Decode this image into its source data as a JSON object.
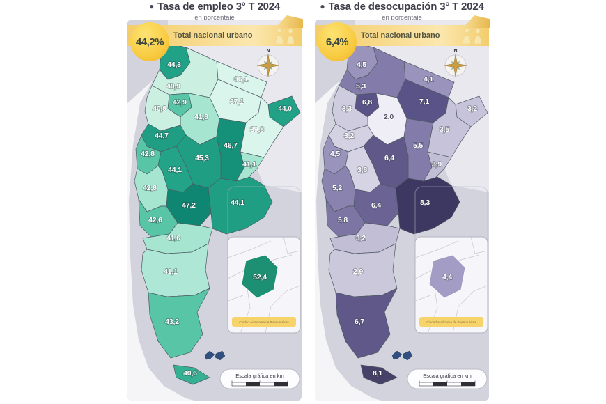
{
  "panels": [
    {
      "bullet": "●",
      "title": "Tasa de empleo 3° T 2024",
      "subtitle": "en porcentaje",
      "badge_value": "44,2%",
      "banner_label": "Total nacional urbano",
      "compass_label": "N",
      "inset_value": "52,4",
      "inset_fill": "#1d8f72",
      "inset_caption": "Ciudad Autónoma de Buenos Aires",
      "scale_label": "Escala gráfica en km",
      "provinces": [
        {
          "name": "Jujuy",
          "value": "44,3",
          "fill": "#21a186"
        },
        {
          "name": "Salta",
          "value": "40,9",
          "fill": "#cbf0e1"
        },
        {
          "name": "Formosa",
          "value": "36,1",
          "fill": "#daf5eb"
        },
        {
          "name": "Chaco",
          "value": "37,1",
          "fill": "#daf5eb"
        },
        {
          "name": "Misiones",
          "value": "44,0",
          "fill": "#21a186"
        },
        {
          "name": "Corrientes",
          "value": "39,8",
          "fill": "#daf5eb"
        },
        {
          "name": "Tucumán",
          "value": "42,9",
          "fill": "#58c5a6"
        },
        {
          "name": "Santiago del Estero",
          "value": "41,8",
          "fill": "#a6e5d0"
        },
        {
          "name": "Catamarca",
          "value": "40,8",
          "fill": "#cbf0e1"
        },
        {
          "name": "La Rioja",
          "value": "44,7",
          "fill": "#1f9e83"
        },
        {
          "name": "Santa Fe",
          "value": "46,7",
          "fill": "#15917a"
        },
        {
          "name": "San Juan",
          "value": "42,8",
          "fill": "#58c5a6"
        },
        {
          "name": "Córdoba",
          "value": "45,3",
          "fill": "#1f9e83"
        },
        {
          "name": "Entre Ríos",
          "value": "41,1",
          "fill": "#a6e5d0"
        },
        {
          "name": "San Luis",
          "value": "44,1",
          "fill": "#23a488"
        },
        {
          "name": "Mendoza",
          "value": "42,8",
          "fill": "#a6e5d0"
        },
        {
          "name": "La Pampa",
          "value": "47,2",
          "fill": "#0e8671"
        },
        {
          "name": "Buenos Aires",
          "value": "44,1",
          "fill": "#1f9e83"
        },
        {
          "name": "Neuquén",
          "value": "42,6",
          "fill": "#58c5a6"
        },
        {
          "name": "Río Negro",
          "value": "41,6",
          "fill": "#a6e5d0"
        },
        {
          "name": "Chubut",
          "value": "41,1",
          "fill": "#aee7d5"
        },
        {
          "name": "Santa Cruz",
          "value": "43,2",
          "fill": "#58c5a6"
        },
        {
          "name": "Tierra del Fuego",
          "value": "40,6",
          "fill": "#35b093"
        }
      ]
    },
    {
      "bullet": "●",
      "title": "Tasa de desocupación 3° T 2024",
      "subtitle": "en porcentaje",
      "badge_value": "6,4%",
      "banner_label": "Total nacional urbano",
      "compass_label": "N",
      "inset_value": "4,4",
      "inset_fill": "#a39dc6",
      "inset_caption": "Ciudad Autónoma de Buenos Aires",
      "scale_label": "Escala gráfica en km",
      "provinces": [
        {
          "name": "Jujuy",
          "value": "4,5",
          "fill": "#9a94bd"
        },
        {
          "name": "Salta",
          "value": "5,3",
          "fill": "#837cab"
        },
        {
          "name": "Formosa",
          "value": "4,1",
          "fill": "#9a94bd"
        },
        {
          "name": "Chaco",
          "value": "7,1",
          "fill": "#5a5387"
        },
        {
          "name": "Misiones",
          "value": "3,2",
          "fill": "#c7c3db"
        },
        {
          "name": "Corrientes",
          "value": "3,5",
          "fill": "#c7c3db"
        },
        {
          "name": "Tucumán",
          "value": "6,8",
          "fill": "#5a5387"
        },
        {
          "name": "Santiago del Estero",
          "value": "2,0",
          "fill": "#efedf6",
          "label_dark": true
        },
        {
          "name": "Catamarca",
          "value": "3,3",
          "fill": "#cfccdf"
        },
        {
          "name": "La Rioja",
          "value": "3,2",
          "fill": "#d4d1e3"
        },
        {
          "name": "Santa Fe",
          "value": "5,5",
          "fill": "#837cab"
        },
        {
          "name": "San Juan",
          "value": "4,5",
          "fill": "#9a94bd"
        },
        {
          "name": "Córdoba",
          "value": "6,4",
          "fill": "#5f5889"
        },
        {
          "name": "Entre Ríos",
          "value": "3,9",
          "fill": "#c2bed6"
        },
        {
          "name": "San Luis",
          "value": "3,8",
          "fill": "#d6d3e4"
        },
        {
          "name": "Mendoza",
          "value": "5,2",
          "fill": "#8a83af"
        },
        {
          "name": "La Pampa",
          "value": "6,4",
          "fill": "#6a6394"
        },
        {
          "name": "Buenos Aires",
          "value": "8,3",
          "fill": "#3d3862"
        },
        {
          "name": "Neuquén",
          "value": "5,8",
          "fill": "#7d76a5"
        },
        {
          "name": "Río Negro",
          "value": "3,2",
          "fill": "#c2bed6"
        },
        {
          "name": "Chubut",
          "value": "2,9",
          "fill": "#ccc8dc"
        },
        {
          "name": "Santa Cruz",
          "value": "6,7",
          "fill": "#5f5889"
        },
        {
          "name": "Tierra del Fuego",
          "value": "8,1",
          "fill": "#474169"
        }
      ]
    }
  ]
}
